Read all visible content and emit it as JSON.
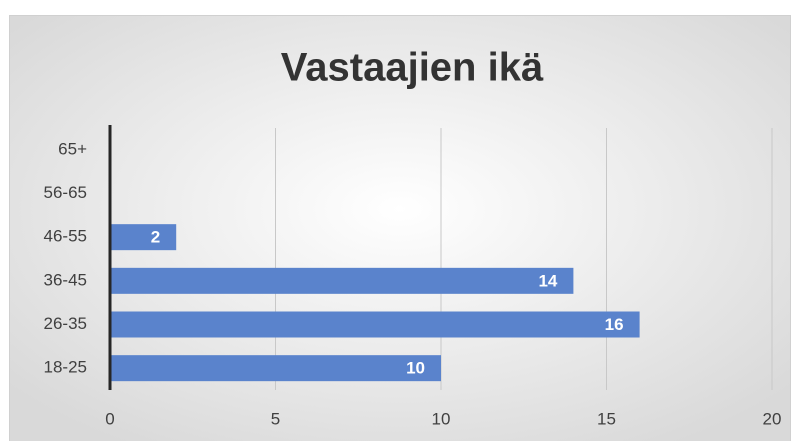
{
  "chart_data": {
    "type": "bar",
    "orientation": "horizontal",
    "title": "Vastaajien ikä",
    "categories": [
      "18-25",
      "26-35",
      "36-45",
      "46-55",
      "56-65",
      "65+"
    ],
    "values": [
      10,
      16,
      14,
      2,
      0,
      0
    ],
    "color": "#5a83cc",
    "xlim": [
      0,
      20
    ],
    "xticks": [
      0,
      5,
      10,
      15,
      20
    ],
    "grid": true
  }
}
